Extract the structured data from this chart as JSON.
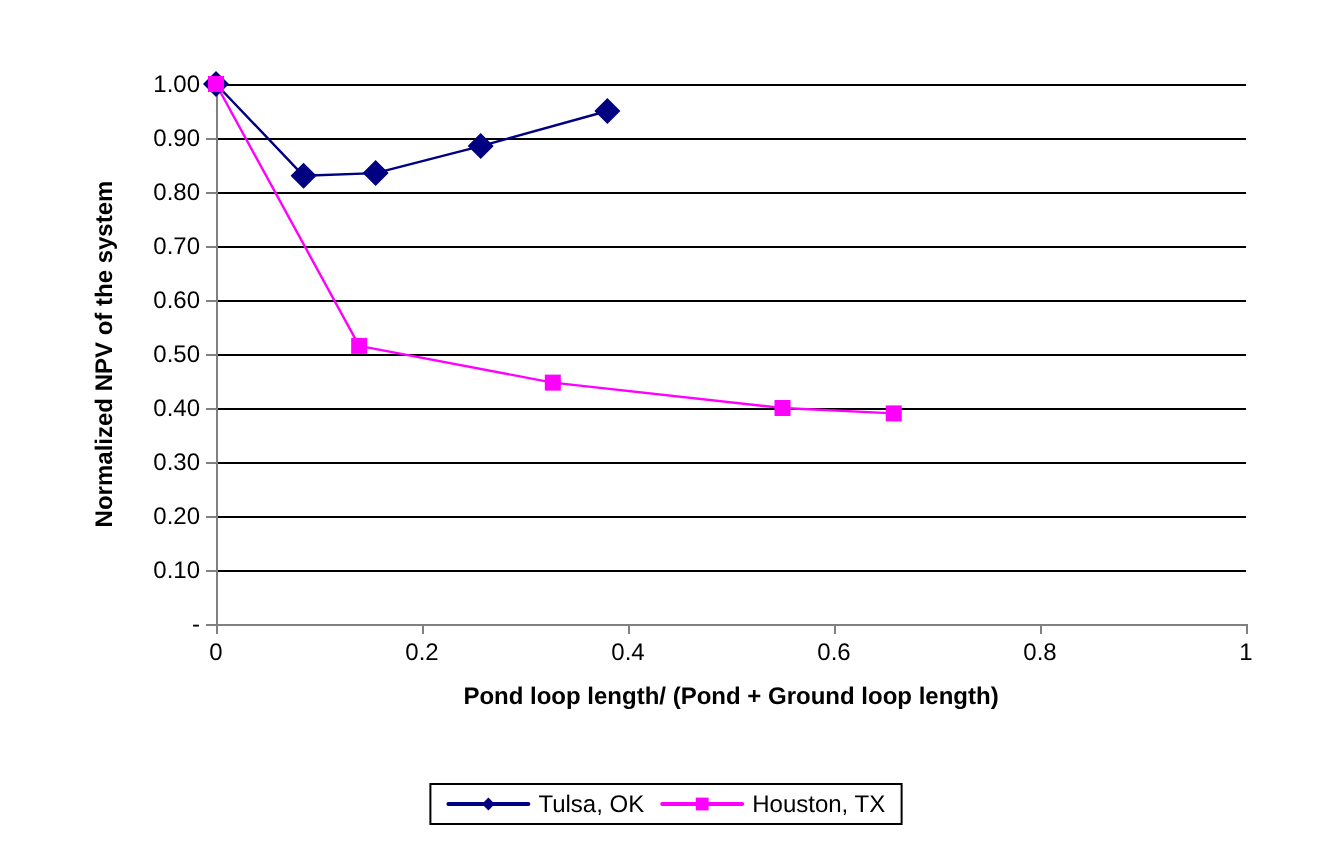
{
  "chart_data": {
    "type": "line",
    "xlabel": "Pond loop length/ (Pond + Ground loop length)",
    "ylabel": "Normalized NPV of the system",
    "series": [
      {
        "name": "Tulsa, OK",
        "color": "#000080",
        "marker": "diamond",
        "x": [
          0,
          0.085,
          0.155,
          0.257,
          0.38
        ],
        "values": [
          1.0,
          0.83,
          0.835,
          0.885,
          0.95
        ]
      },
      {
        "name": "Houston, TX",
        "color": "#ff00ff",
        "marker": "square",
        "x": [
          0,
          0.139,
          0.327,
          0.55,
          0.658
        ],
        "values": [
          1.0,
          0.515,
          0.447,
          0.4,
          0.39
        ]
      }
    ],
    "xlim": [
      0,
      1
    ],
    "xticks": [
      0,
      0.2,
      0.4,
      0.6,
      0.8,
      1
    ],
    "ylim": [
      0,
      1
    ],
    "yticks": [
      {
        "value": 0,
        "label": "-"
      },
      {
        "value": 0.1,
        "label": "0.10"
      },
      {
        "value": 0.2,
        "label": "0.20"
      },
      {
        "value": 0.3,
        "label": "0.30"
      },
      {
        "value": 0.4,
        "label": "0.40"
      },
      {
        "value": 0.5,
        "label": "0.50"
      },
      {
        "value": 0.6,
        "label": "0.60"
      },
      {
        "value": 0.7,
        "label": "0.70"
      },
      {
        "value": 0.8,
        "label": "0.80"
      },
      {
        "value": 0.9,
        "label": "0.90"
      },
      {
        "value": 1,
        "label": "1.00"
      }
    ],
    "grid": "y",
    "legend": "bottom",
    "line_style": "solid"
  }
}
